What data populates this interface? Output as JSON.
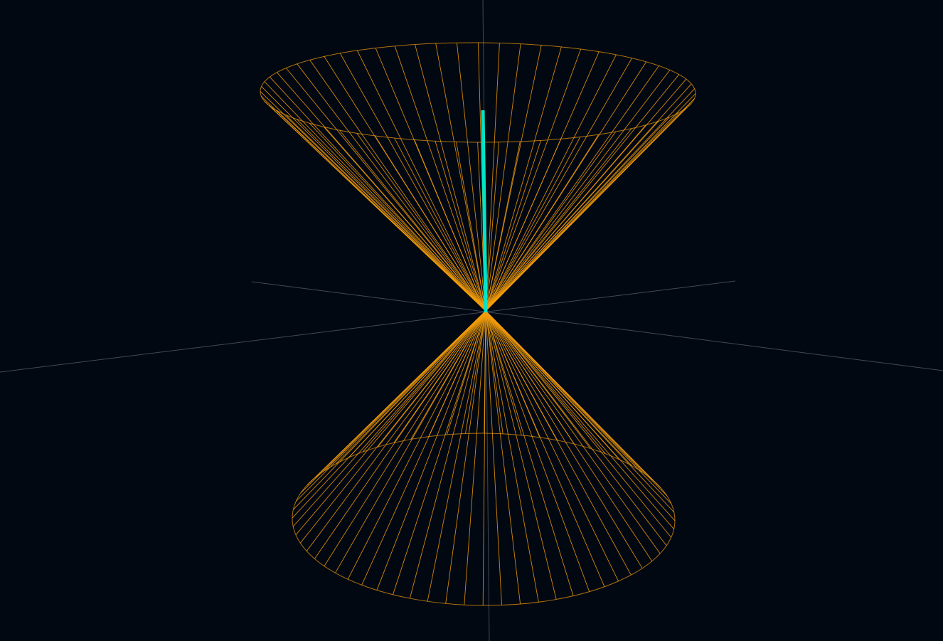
{
  "scene": {
    "type": "3d-wireframe-light-cone",
    "background_color": "#020812",
    "axis_color": "#4b5563",
    "cone_color": "#f59e0b",
    "vector_color": "#00e5c8",
    "generator_lines_per_cone": 64,
    "cones": [
      "future-cone",
      "past-cone"
    ],
    "vector": "timelike-vector"
  }
}
